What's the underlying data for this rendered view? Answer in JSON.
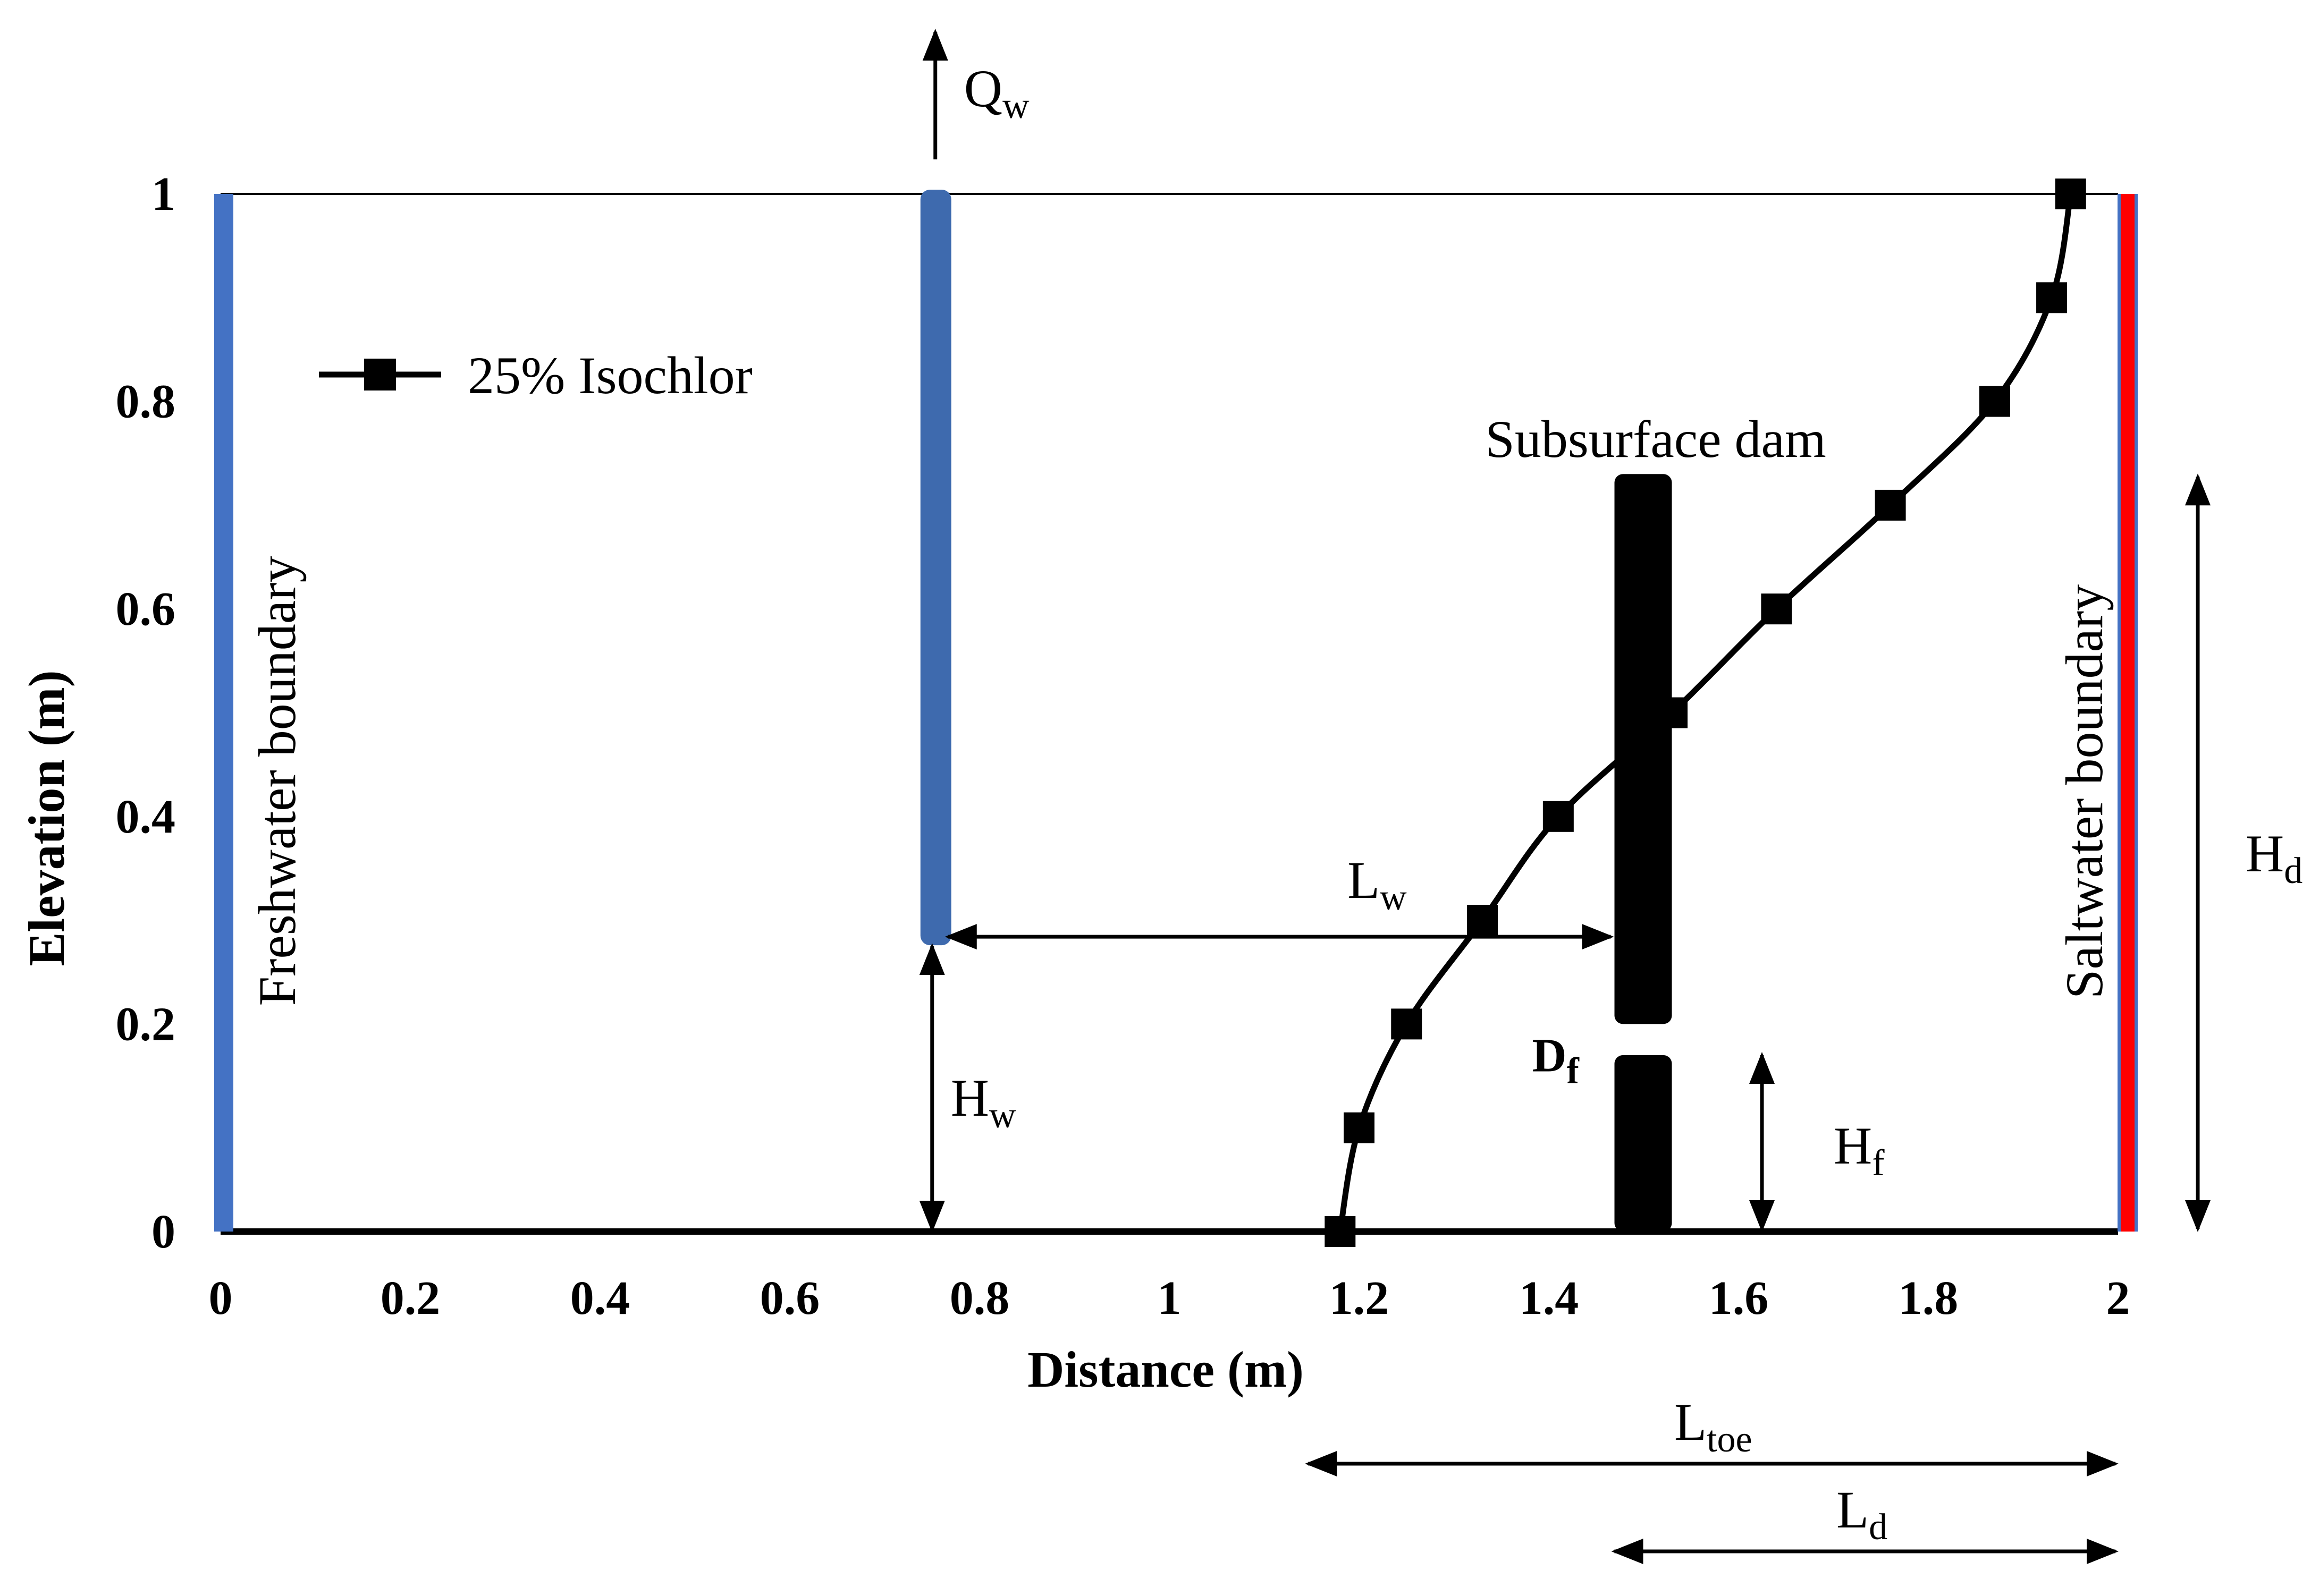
{
  "chart_data": {
    "type": "line",
    "xlabel": "Distance (m)",
    "ylabel": "Elevation (m)",
    "xlim": [
      0,
      2
    ],
    "ylim": [
      0,
      1
    ],
    "x_ticks": [
      "0",
      "0.2",
      "0.4",
      "0.6",
      "0.8",
      "1",
      "1.2",
      "1.4",
      "1.6",
      "1.8",
      "2"
    ],
    "y_ticks": [
      "0",
      "0.2",
      "0.4",
      "0.6",
      "0.8",
      "1"
    ],
    "series": [
      {
        "name": "25% Isochlor",
        "color": "#000000",
        "marker": "square",
        "points": [
          {
            "x": 1.18,
            "y": 0.0
          },
          {
            "x": 1.2,
            "y": 0.1
          },
          {
            "x": 1.25,
            "y": 0.2
          },
          {
            "x": 1.33,
            "y": 0.3
          },
          {
            "x": 1.41,
            "y": 0.4
          },
          {
            "x": 1.53,
            "y": 0.5
          },
          {
            "x": 1.64,
            "y": 0.6
          },
          {
            "x": 1.76,
            "y": 0.7
          },
          {
            "x": 1.87,
            "y": 0.8
          },
          {
            "x": 1.93,
            "y": 0.9
          },
          {
            "x": 1.95,
            "y": 1.0
          }
        ]
      }
    ],
    "legend": {
      "label": "25% Isochlor",
      "placement": "top-left"
    },
    "boundaries": {
      "freshwater": {
        "label": "Freshwater boundary",
        "x": 0.0,
        "color": "#4472C4"
      },
      "saltwater": {
        "label": "Saltwater boundary",
        "x": 2.0,
        "color": "#FF0000"
      }
    },
    "well": {
      "x": 0.75,
      "y_from": 0.28,
      "y_to": 1.0,
      "color": "#4472C4",
      "pumping_label": "Q",
      "pumping_sub": "w"
    },
    "dam": {
      "label": "Subsurface dam",
      "x": 1.5,
      "upper": {
        "y_from": 0.2,
        "y_to": 0.73
      },
      "lower": {
        "y_from": 0.0,
        "y_to": 0.17
      },
      "gap_label": "D",
      "gap_sub": "f"
    },
    "dimensions": {
      "Lw": {
        "label": "L",
        "sub": "w"
      },
      "Hw": {
        "label": "H",
        "sub": "w"
      },
      "Hf": {
        "label": "H",
        "sub": "f"
      },
      "Hd": {
        "label": "H",
        "sub": "d"
      },
      "Ltoe": {
        "label": "L",
        "sub": "toe"
      },
      "Ld": {
        "label": "L",
        "sub": "d"
      }
    }
  }
}
